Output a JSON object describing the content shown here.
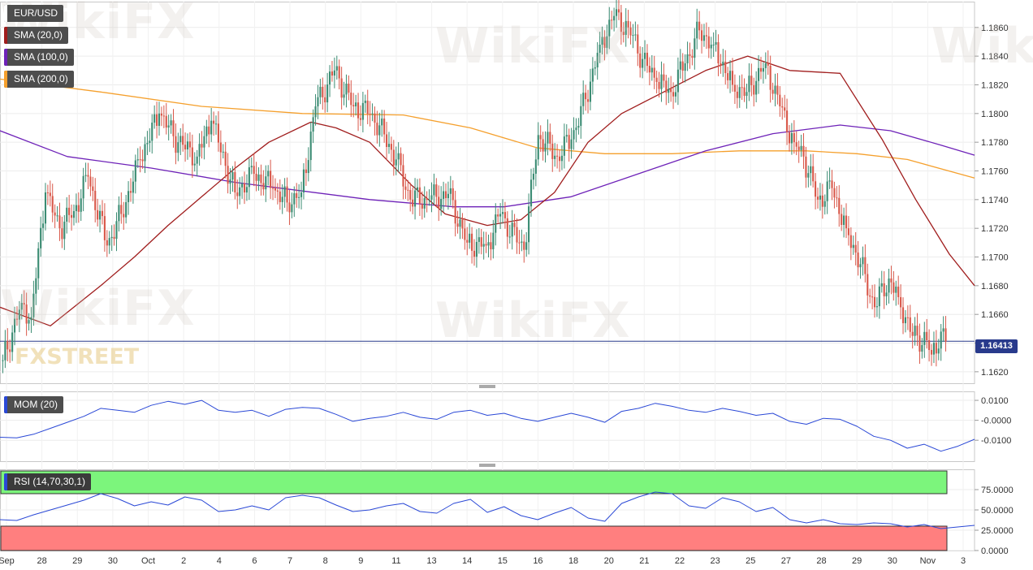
{
  "panels": {
    "price": {
      "symbol": "EUR/USD",
      "sma20_label": "SMA (20,0)",
      "sma100_label": "SMA (100,0)",
      "sma200_label": "SMA (200,0)",
      "current_price": "1.16413"
    },
    "mom": {
      "label": "MOM (20)"
    },
    "rsi": {
      "label": "RSI (14,70,30,1)"
    }
  },
  "watermarks": [
    "WikiFX",
    "WikiFX",
    "WikiFX",
    "WikiFX",
    "WikiFX",
    "FXSTREET"
  ],
  "colors": {
    "bull": "#3b8c73",
    "bear": "#d9584a",
    "sma20": "#a01d1d",
    "sma100": "#6e22b8",
    "sma200": "#f5a02d",
    "mom": "#2a48d6",
    "rsi": "#2a48d6",
    "overbought": "#7cf57c",
    "oversold": "#ff7f7f",
    "price_line": "#283a8c"
  },
  "chart_data": [
    {
      "type": "candlestick",
      "title": "EUR/USD",
      "y_ticks": [
        "1.1620",
        "1.1640",
        "1.1660",
        "1.1680",
        "1.1700",
        "1.1720",
        "1.1740",
        "1.1760",
        "1.1780",
        "1.1800",
        "1.1820",
        "1.1840",
        "1.1860"
      ],
      "ylim": [
        1.1612,
        1.1878
      ],
      "x_ticks": [
        "Sep",
        "28",
        "29",
        "30",
        "Oct",
        "2",
        "4",
        "6",
        "7",
        "8",
        "9",
        "11",
        "13",
        "14",
        "15",
        "16",
        "18",
        "20",
        "21",
        "22",
        "23",
        "25",
        "27",
        "28",
        "29",
        "30",
        "Nov",
        "3"
      ],
      "anchors": [
        [
          1.1628,
          0
        ],
        [
          1.1668,
          8
        ],
        [
          1.1658,
          12
        ],
        [
          1.1745,
          18
        ],
        [
          1.172,
          24
        ],
        [
          1.1732,
          30
        ],
        [
          1.1756,
          36
        ],
        [
          1.1708,
          44
        ],
        [
          1.173,
          50
        ],
        [
          1.1768,
          58
        ],
        [
          1.18,
          66
        ],
        [
          1.178,
          74
        ],
        [
          1.177,
          82
        ],
        [
          1.1795,
          88
        ],
        [
          1.1745,
          98
        ],
        [
          1.1758,
          106
        ],
        [
          1.1748,
          114
        ],
        [
          1.1738,
          120
        ],
        [
          1.1745,
          126
        ],
        [
          1.1805,
          132
        ],
        [
          1.183,
          140
        ],
        [
          1.1805,
          148
        ],
        [
          1.18,
          156
        ],
        [
          1.1768,
          166
        ],
        [
          1.174,
          172
        ],
        [
          1.174,
          180
        ],
        [
          1.1744,
          188
        ],
        [
          1.171,
          196
        ],
        [
          1.1708,
          204
        ],
        [
          1.173,
          210
        ],
        [
          1.1705,
          220
        ],
        [
          1.1785,
          226
        ],
        [
          1.177,
          234
        ],
        [
          1.1782,
          240
        ],
        [
          1.181,
          246
        ],
        [
          1.1848,
          252
        ],
        [
          1.1868,
          258
        ],
        [
          1.186,
          264
        ],
        [
          1.1838,
          270
        ],
        [
          1.1822,
          276
        ],
        [
          1.1815,
          282
        ],
        [
          1.1835,
          288
        ],
        [
          1.1858,
          294
        ],
        [
          1.1848,
          300
        ],
        [
          1.182,
          308
        ],
        [
          1.1815,
          314
        ],
        [
          1.1835,
          322
        ],
        [
          1.1805,
          328
        ],
        [
          1.178,
          334
        ],
        [
          1.177,
          338
        ],
        [
          1.174,
          344
        ],
        [
          1.1748,
          350
        ],
        [
          1.172,
          356
        ],
        [
          1.1695,
          362
        ],
        [
          1.1665,
          368
        ],
        [
          1.1685,
          374
        ],
        [
          1.1672,
          378
        ],
        [
          1.1645,
          384
        ],
        [
          1.1642,
          390
        ],
        [
          1.1632,
          392
        ],
        [
          1.1648,
          396
        ],
        [
          1.1641,
          398
        ]
      ],
      "candle_count": 399,
      "sma20": [
        [
          0,
          1.1665
        ],
        [
          30,
          1.1652
        ],
        [
          60,
          1.168
        ],
        [
          80,
          1.17
        ],
        [
          100,
          1.1722
        ],
        [
          120,
          1.1742
        ],
        [
          140,
          1.1762
        ],
        [
          160,
          1.178
        ],
        [
          185,
          1.1794
        ],
        [
          200,
          1.179
        ],
        [
          220,
          1.178
        ],
        [
          245,
          1.175
        ],
        [
          265,
          1.173
        ],
        [
          290,
          1.1722
        ],
        [
          310,
          1.1726
        ],
        [
          330,
          1.1745
        ],
        [
          350,
          1.178
        ],
        [
          370,
          1.18
        ],
        [
          395,
          1.1815
        ],
        [
          420,
          1.183
        ],
        [
          445,
          1.184
        ],
        [
          470,
          1.183
        ],
        [
          500,
          1.1828
        ],
        [
          525,
          1.1782
        ],
        [
          545,
          1.174
        ],
        [
          565,
          1.1702
        ],
        [
          580,
          1.168
        ]
      ],
      "sma100": [
        [
          0,
          1.1788
        ],
        [
          40,
          1.177
        ],
        [
          90,
          1.1762
        ],
        [
          140,
          1.1752
        ],
        [
          180,
          1.1746
        ],
        [
          220,
          1.174
        ],
        [
          270,
          1.1735
        ],
        [
          300,
          1.1735
        ],
        [
          340,
          1.1742
        ],
        [
          380,
          1.1758
        ],
        [
          420,
          1.1774
        ],
        [
          460,
          1.1786
        ],
        [
          500,
          1.1792
        ],
        [
          530,
          1.1788
        ],
        [
          560,
          1.1778
        ],
        [
          580,
          1.1771
        ]
      ],
      "sma200": [
        [
          0,
          1.1824
        ],
        [
          60,
          1.1815
        ],
        [
          120,
          1.1805
        ],
        [
          180,
          1.18
        ],
        [
          240,
          1.1799
        ],
        [
          280,
          1.179
        ],
        [
          320,
          1.1776
        ],
        [
          360,
          1.1772
        ],
        [
          400,
          1.1772
        ],
        [
          440,
          1.1774
        ],
        [
          480,
          1.1774
        ],
        [
          510,
          1.1772
        ],
        [
          540,
          1.1768
        ],
        [
          580,
          1.1755
        ]
      ],
      "current": 1.16413
    },
    {
      "type": "line",
      "title": "MOM (20)",
      "y_ticks": [
        "0.0100",
        "-0.0000",
        "-0.0100"
      ],
      "ylim": [
        -0.0205,
        0.0145
      ],
      "values": [
        [
          0,
          -0.0085
        ],
        [
          10,
          -0.0088
        ],
        [
          20,
          -0.007
        ],
        [
          30,
          -0.004
        ],
        [
          40,
          -0.001
        ],
        [
          50,
          0.002
        ],
        [
          60,
          0.006
        ],
        [
          70,
          0.005
        ],
        [
          80,
          0.004
        ],
        [
          90,
          0.0075
        ],
        [
          100,
          0.0095
        ],
        [
          110,
          0.008
        ],
        [
          120,
          0.01
        ],
        [
          130,
          0.005
        ],
        [
          140,
          0.004
        ],
        [
          150,
          0.005
        ],
        [
          160,
          0.002
        ],
        [
          170,
          0.0055
        ],
        [
          180,
          0.0065
        ],
        [
          190,
          0.006
        ],
        [
          200,
          0.003
        ],
        [
          210,
          -0.0005
        ],
        [
          220,
          0.001
        ],
        [
          230,
          0.002
        ],
        [
          240,
          0.004
        ],
        [
          250,
          0.0015
        ],
        [
          260,
          0.0005
        ],
        [
          270,
          0.004
        ],
        [
          280,
          0.005
        ],
        [
          290,
          0.0025
        ],
        [
          300,
          0.0035
        ],
        [
          310,
          0.001
        ],
        [
          320,
          -0.0005
        ],
        [
          330,
          0.0015
        ],
        [
          340,
          0.0035
        ],
        [
          350,
          0.0015
        ],
        [
          360,
          -0.001
        ],
        [
          370,
          0.0045
        ],
        [
          380,
          0.006
        ],
        [
          390,
          0.0085
        ],
        [
          400,
          0.007
        ],
        [
          410,
          0.005
        ],
        [
          420,
          0.004
        ],
        [
          430,
          0.006
        ],
        [
          440,
          0.0045
        ],
        [
          450,
          0.0025
        ],
        [
          460,
          0.0035
        ],
        [
          470,
          -0.0005
        ],
        [
          480,
          -0.002
        ],
        [
          490,
          0.001
        ],
        [
          500,
          0.0005
        ],
        [
          510,
          -0.003
        ],
        [
          520,
          -0.008
        ],
        [
          530,
          -0.01
        ],
        [
          540,
          -0.014
        ],
        [
          550,
          -0.012
        ],
        [
          560,
          -0.0155
        ],
        [
          570,
          -0.013
        ],
        [
          580,
          -0.0095
        ]
      ]
    },
    {
      "type": "line",
      "title": "RSI (14,70,30,1)",
      "y_ticks": [
        "75.0000",
        "50.0000",
        "25.0000",
        "0.0000"
      ],
      "ylim": [
        0,
        100
      ],
      "levels": [
        70,
        30
      ],
      "values": [
        [
          0,
          38
        ],
        [
          10,
          37
        ],
        [
          20,
          44
        ],
        [
          30,
          50
        ],
        [
          40,
          56
        ],
        [
          50,
          62
        ],
        [
          60,
          70
        ],
        [
          70,
          64
        ],
        [
          80,
          55
        ],
        [
          90,
          60
        ],
        [
          100,
          56
        ],
        [
          110,
          66
        ],
        [
          120,
          62
        ],
        [
          130,
          48
        ],
        [
          140,
          50
        ],
        [
          150,
          55
        ],
        [
          160,
          50
        ],
        [
          170,
          65
        ],
        [
          180,
          68
        ],
        [
          190,
          65
        ],
        [
          200,
          56
        ],
        [
          210,
          48
        ],
        [
          220,
          50
        ],
        [
          230,
          55
        ],
        [
          240,
          58
        ],
        [
          250,
          48
        ],
        [
          260,
          46
        ],
        [
          270,
          58
        ],
        [
          280,
          63
        ],
        [
          290,
          47
        ],
        [
          300,
          54
        ],
        [
          310,
          43
        ],
        [
          320,
          38
        ],
        [
          330,
          46
        ],
        [
          340,
          53
        ],
        [
          350,
          40
        ],
        [
          360,
          36
        ],
        [
          370,
          58
        ],
        [
          380,
          66
        ],
        [
          390,
          72
        ],
        [
          400,
          70
        ],
        [
          410,
          55
        ],
        [
          420,
          52
        ],
        [
          430,
          65
        ],
        [
          440,
          60
        ],
        [
          450,
          48
        ],
        [
          460,
          53
        ],
        [
          470,
          38
        ],
        [
          480,
          34
        ],
        [
          490,
          38
        ],
        [
          500,
          33
        ],
        [
          510,
          32
        ],
        [
          520,
          34
        ],
        [
          530,
          33
        ],
        [
          540,
          29
        ],
        [
          550,
          32
        ],
        [
          560,
          27
        ],
        [
          570,
          29
        ],
        [
          580,
          31
        ]
      ]
    }
  ]
}
